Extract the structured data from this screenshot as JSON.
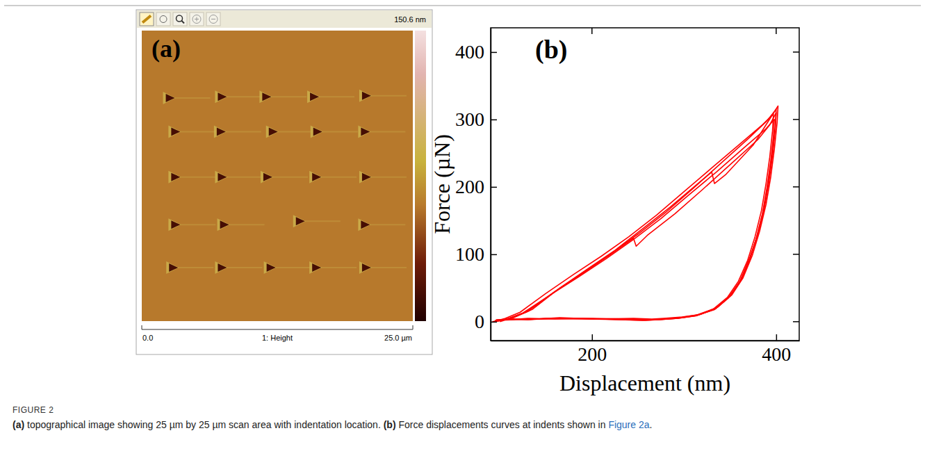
{
  "chart_data": {
    "type": "line",
    "annotations": [
      "(b)"
    ],
    "xlabel": "Displacement (nm)",
    "ylabel": "Force (µN)",
    "xlim": [
      90,
      425
    ],
    "xticks": [
      200,
      400
    ],
    "ylim": [
      -28,
      436
    ],
    "yticks": [
      0,
      100,
      200,
      300,
      400
    ],
    "color": "#ff0000",
    "series": [
      {
        "x": [
          95,
          110,
          130,
          160,
          190,
          220,
          250,
          280,
          310,
          340,
          370,
          390,
          400,
          399,
          396,
          392,
          387,
          380,
          372,
          362,
          350,
          335,
          315,
          295,
          275,
          262,
          240,
          200,
          160,
          130,
          110,
          95
        ],
        "values": [
          0,
          5,
          15,
          45,
          72,
          100,
          130,
          162,
          198,
          235,
          272,
          298,
          315,
          290,
          250,
          210,
          170,
          130,
          95,
          62,
          38,
          20,
          10,
          6,
          4,
          3,
          4,
          5,
          4,
          5,
          3,
          2
        ]
      },
      {
        "x": [
          95,
          108,
          125,
          155,
          185,
          215,
          245,
          275,
          305,
          335,
          365,
          388,
          398,
          397,
          394,
          390,
          385,
          378,
          370,
          360,
          348,
          333,
          313,
          293,
          272,
          258,
          235,
          195,
          150,
          130,
          112,
          96
        ],
        "values": [
          0,
          4,
          13,
          40,
          66,
          93,
          122,
          153,
          188,
          222,
          258,
          285,
          300,
          276,
          238,
          199,
          160,
          122,
          88,
          58,
          35,
          18,
          9,
          5,
          3,
          2,
          3,
          4,
          5,
          3,
          4,
          2
        ]
      },
      {
        "x": [
          100,
          115,
          135,
          165,
          195,
          225,
          255,
          285,
          315,
          330,
          333,
          345,
          375,
          395,
          402,
          401,
          398,
          394,
          389,
          382,
          374,
          364,
          352,
          337,
          318,
          298,
          278,
          265,
          245,
          205,
          165,
          140,
          115,
          98
        ],
        "values": [
          0,
          6,
          18,
          50,
          78,
          106,
          138,
          170,
          205,
          222,
          205,
          218,
          262,
          305,
          320,
          295,
          256,
          214,
          174,
          134,
          98,
          65,
          40,
          22,
          11,
          7,
          5,
          4,
          5,
          4,
          6,
          4,
          3,
          2
        ]
      },
      {
        "x": [
          94,
          106,
          122,
          150,
          180,
          210,
          240,
          270,
          300,
          330,
          360,
          385,
          397,
          396,
          393,
          389,
          384,
          377,
          369,
          359,
          347,
          332,
          312,
          292,
          270,
          255,
          230,
          190,
          150,
          128,
          110,
          95
        ],
        "values": [
          0,
          5,
          14,
          42,
          70,
          97,
          126,
          158,
          193,
          228,
          263,
          292,
          308,
          283,
          244,
          205,
          165,
          126,
          91,
          60,
          36,
          19,
          9,
          5,
          3,
          2,
          3,
          5,
          4,
          4,
          3,
          2
        ]
      },
      {
        "x": [
          92,
          108,
          128,
          158,
          188,
          218,
          245,
          248,
          260,
          290,
          320,
          350,
          380,
          393,
          400,
          399,
          396,
          392,
          387,
          380,
          371,
          361,
          349,
          334,
          314,
          294,
          273,
          260,
          238,
          198,
          155,
          132,
          112,
          96
        ],
        "values": [
          0,
          4,
          14,
          43,
          70,
          98,
          124,
          112,
          128,
          160,
          196,
          233,
          270,
          292,
          310,
          286,
          247,
          207,
          168,
          129,
          94,
          61,
          37,
          19,
          9,
          5,
          3,
          3,
          4,
          4,
          5,
          3,
          4,
          3
        ]
      }
    ]
  },
  "image_panel": {
    "label": "(a)",
    "color_bar": {
      "range": [
        0,
        150.6
      ],
      "ticks": [
        {
          "value": 150.6,
          "label": "150.6 nm"
        }
      ]
    },
    "x_axis": {
      "range": [
        0,
        25
      ],
      "ticks": [
        {
          "value": 0,
          "label": "0.0"
        },
        {
          "value": 25,
          "label": "25.0 µm"
        }
      ],
      "title": "1: Height"
    },
    "y_range": [
      0,
      25
    ],
    "surface_height": 60,
    "indent_floor_height": 15,
    "rim_height": 90,
    "indents": [
      [
        2.6,
        5.8
      ],
      [
        7.4,
        5.7
      ],
      [
        11.5,
        5.7
      ],
      [
        15.9,
        5.7
      ],
      [
        20.7,
        5.6
      ],
      [
        3.1,
        8.7
      ],
      [
        7.3,
        8.7
      ],
      [
        12.1,
        8.7
      ],
      [
        16.2,
        8.7
      ],
      [
        20.6,
        8.7
      ],
      [
        3.1,
        12.6
      ],
      [
        7.4,
        12.6
      ],
      [
        11.6,
        12.6
      ],
      [
        16.1,
        12.6
      ],
      [
        20.7,
        12.6
      ],
      [
        3.1,
        16.7
      ],
      [
        7.6,
        16.7
      ],
      [
        14.6,
        16.4
      ],
      [
        20.6,
        16.7
      ],
      [
        2.9,
        20.4
      ],
      [
        7.4,
        20.4
      ],
      [
        11.9,
        20.4
      ],
      [
        16.1,
        20.4
      ],
      [
        20.7,
        20.4
      ]
    ]
  },
  "caption": {
    "label": "FIGURE 2",
    "parts": [
      {
        "text": "(a)",
        "style": "bold"
      },
      {
        "text": " topographical image showing 25 µm by 25 µm scan area with indentation location. ",
        "style": "plain"
      },
      {
        "text": "(b)",
        "style": "bold"
      },
      {
        "text": " Force displacements curves at indents shown in ",
        "style": "plain"
      },
      {
        "text": "Figure 2a",
        "style": "link"
      },
      {
        "text": ".",
        "style": "plain"
      }
    ]
  }
}
